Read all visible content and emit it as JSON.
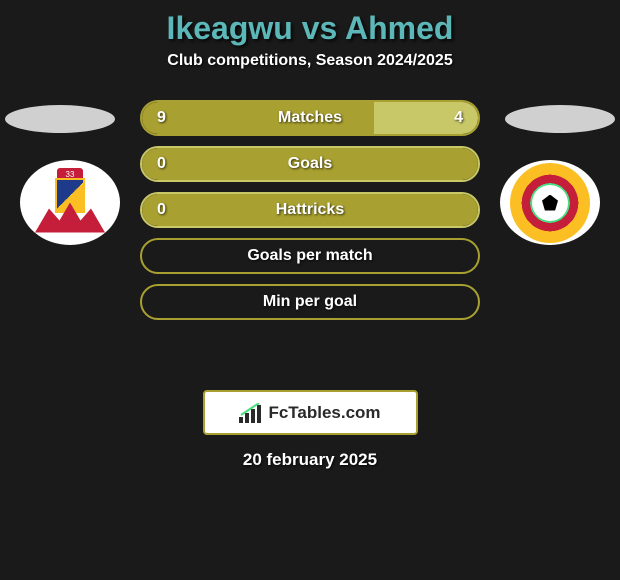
{
  "header": {
    "title": "Ikeagwu vs Ahmed",
    "subtitle": "Club competitions, Season 2024/2025",
    "title_color": "#5cb8b8",
    "subtitle_color": "#ffffff"
  },
  "stats": [
    {
      "label": "Matches",
      "left_value": "9",
      "right_value": "4",
      "left_pct": 69,
      "right_pct": 31,
      "left_color": "#a8a030",
      "right_color": "#c8c868",
      "bg_color": "#a8a030",
      "border_color": "#a8a030",
      "show_left": true,
      "show_right": true
    },
    {
      "label": "Goals",
      "left_value": "0",
      "right_value": "",
      "left_pct": 10,
      "right_pct": 0,
      "left_color": "#a8a030",
      "right_color": "#a8a030",
      "bg_color": "#a8a030",
      "border_color": "#c8c868",
      "show_left": true,
      "show_right": false
    },
    {
      "label": "Hattricks",
      "left_value": "0",
      "right_value": "",
      "left_pct": 10,
      "right_pct": 0,
      "left_color": "#a8a030",
      "right_color": "#a8a030",
      "bg_color": "#a8a030",
      "border_color": "#c8c868",
      "show_left": true,
      "show_right": false
    },
    {
      "label": "Goals per match",
      "left_value": "",
      "right_value": "",
      "left_pct": 0,
      "right_pct": 0,
      "left_color": "#a8a030",
      "right_color": "#a8a030",
      "bg_color": "transparent",
      "border_color": "#a8a030",
      "show_left": false,
      "show_right": false
    },
    {
      "label": "Min per goal",
      "left_value": "",
      "right_value": "",
      "left_pct": 0,
      "right_pct": 0,
      "left_color": "#a8a030",
      "right_color": "#a8a030",
      "bg_color": "transparent",
      "border_color": "#a8a030",
      "show_left": false,
      "show_right": false
    }
  ],
  "logos": {
    "left_badge_text": "33"
  },
  "footer": {
    "brand": "FcTables.com",
    "date": "20 february 2025",
    "badge_border_color": "#a8a030"
  },
  "colors": {
    "background": "#1a1a1a",
    "ellipse": "#d0d0d0",
    "primary_olive": "#a8a030",
    "secondary_olive": "#c8c868"
  }
}
